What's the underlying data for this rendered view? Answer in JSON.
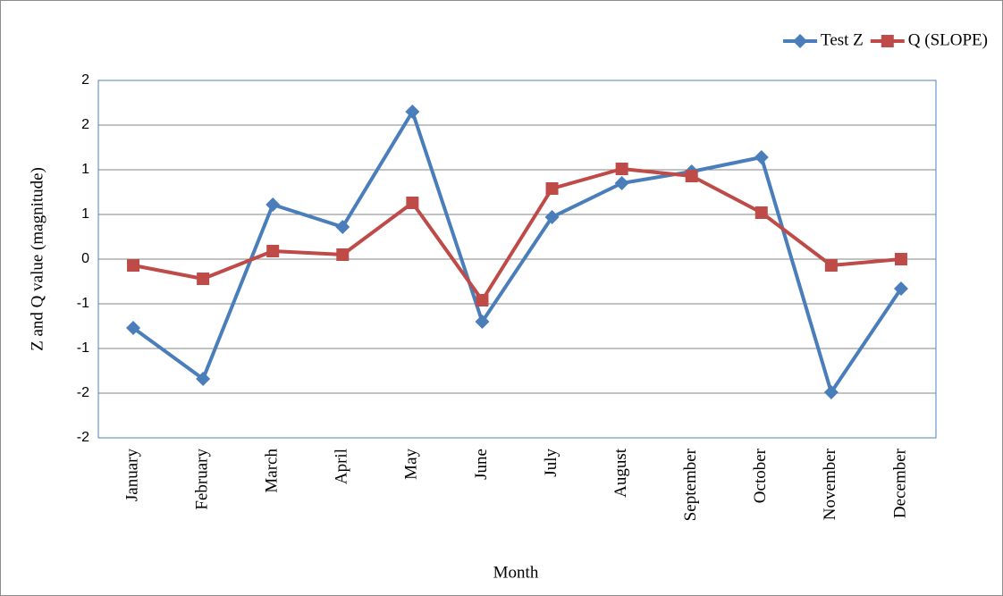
{
  "chart_data": {
    "type": "line",
    "x_label": "Month",
    "y_label": "Z and Q value (magnitude)",
    "categories": [
      "January",
      "February",
      "March",
      "April",
      "May",
      "June",
      "July",
      "August",
      "September",
      "October",
      "November",
      "December"
    ],
    "series": [
      {
        "name": "Test Z",
        "color": "#4a7ebb",
        "marker": "diamond",
        "values": [
          -0.77,
          -1.34,
          0.61,
          0.36,
          1.65,
          -0.7,
          0.47,
          0.85,
          0.98,
          1.14,
          -1.49,
          -0.33
        ]
      },
      {
        "name": "Q (SLOPE)",
        "color": "#be4b48",
        "marker": "square",
        "values": [
          -0.07,
          -0.22,
          0.09,
          0.05,
          0.63,
          -0.46,
          0.79,
          1.01,
          0.93,
          0.52,
          -0.07,
          0
        ]
      }
    ],
    "ylim": [
      -2,
      2
    ],
    "yticks": [
      -2,
      {
        "value": -1.5,
        "label": "-2"
      },
      -1,
      {
        "value": -0.5,
        "label": "-1"
      },
      0,
      {
        "value": 0.5,
        "label": "1"
      },
      1,
      {
        "value": 1.5,
        "label": "2"
      },
      2
    ],
    "grid": true,
    "legend": "top-right"
  }
}
